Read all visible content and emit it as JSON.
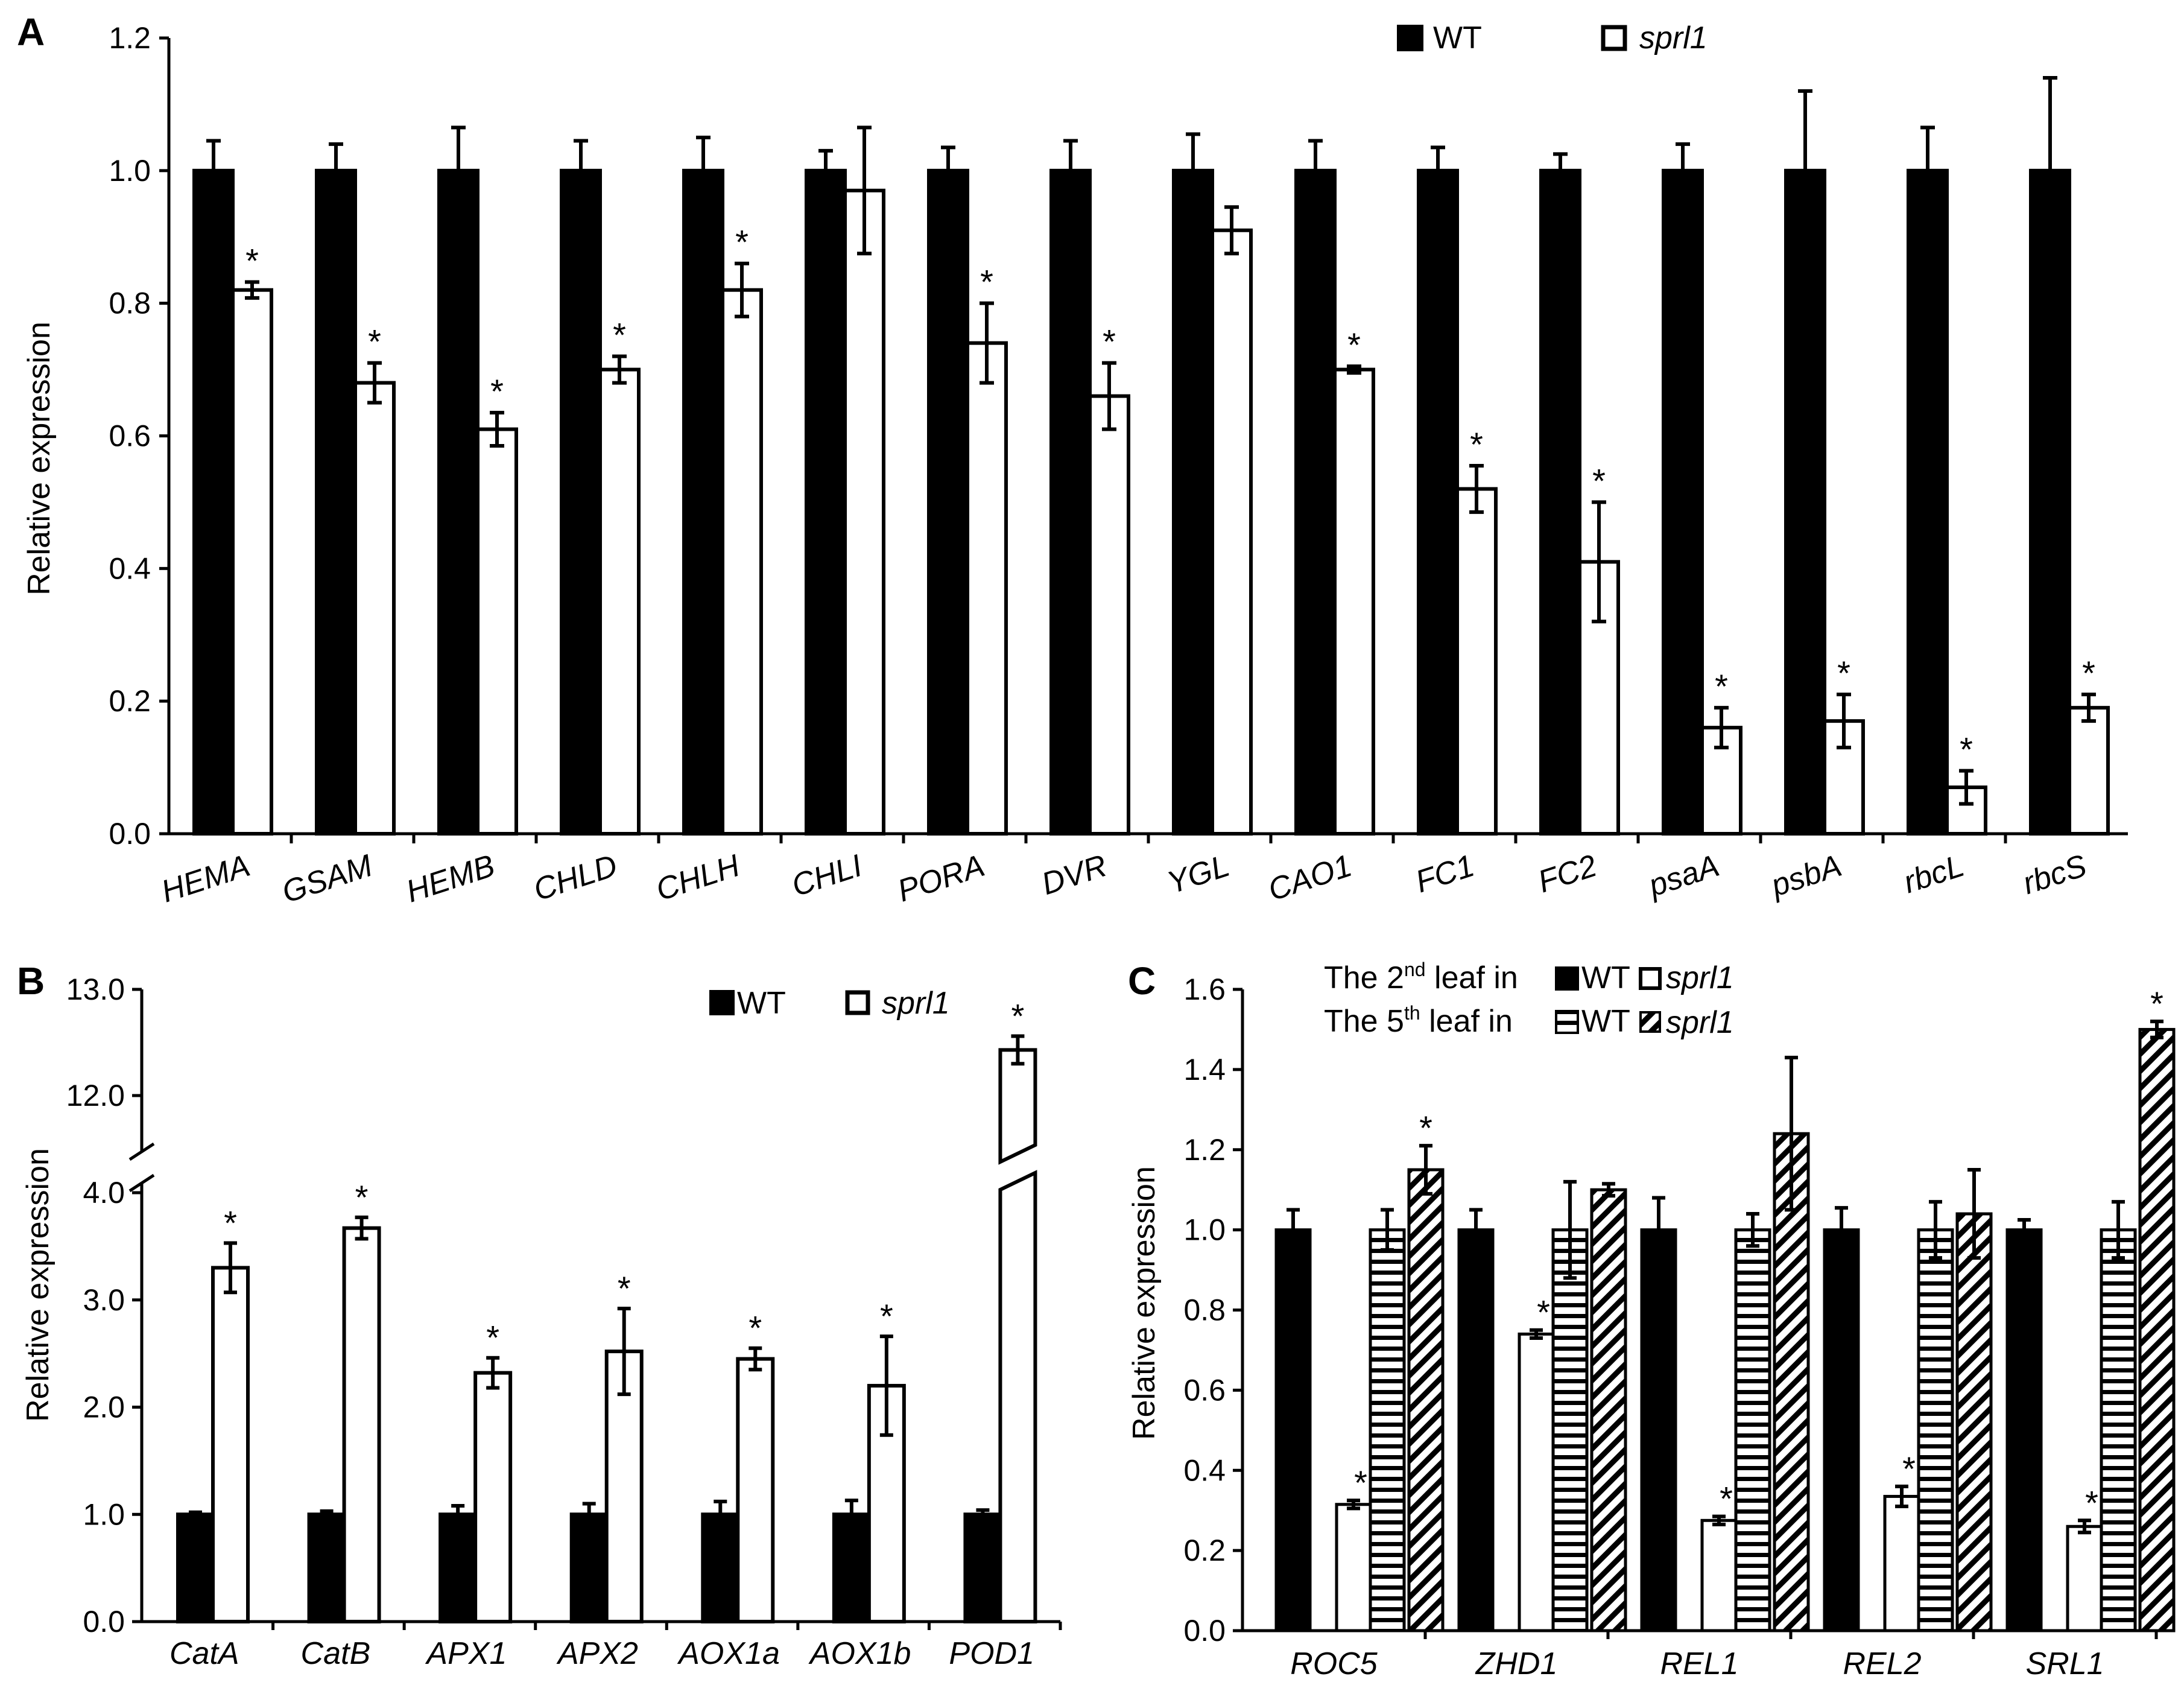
{
  "colors": {
    "wt": "#000000",
    "mutant": "#ffffff",
    "stroke": "#000000"
  },
  "chart_data": [
    {
      "panel": "A",
      "type": "bar",
      "ylabel": "Relative expression",
      "ylim": [
        0,
        1.2
      ],
      "yticks": [
        "0.0",
        "0.2",
        "0.4",
        "0.6",
        "0.8",
        "1.0",
        "1.2"
      ],
      "categories": [
        "HEMA",
        "GSAM",
        "HEMB",
        "CHLD",
        "CHLH",
        "CHLI",
        "PORA",
        "DVR",
        "YGL",
        "CAO1",
        "FC1",
        "FC2",
        "psaA",
        "psbA",
        "rbcL",
        "rbcS"
      ],
      "legend": [
        "WT",
        "sprl1"
      ],
      "series": [
        {
          "name": "WT",
          "fill": "solid",
          "values": [
            1.0,
            1.0,
            1.0,
            1.0,
            1.0,
            1.0,
            1.0,
            1.0,
            1.0,
            1.0,
            1.0,
            1.0,
            1.0,
            1.0,
            1.0,
            1.0
          ],
          "errors": [
            0.045,
            0.04,
            0.065,
            0.045,
            0.05,
            0.03,
            0.035,
            0.045,
            0.055,
            0.045,
            0.035,
            0.025,
            0.04,
            0.12,
            0.065,
            0.14
          ]
        },
        {
          "name": "sprl1",
          "fill": "open",
          "values": [
            0.82,
            0.68,
            0.61,
            0.7,
            0.82,
            0.97,
            0.74,
            0.66,
            0.91,
            0.7,
            0.52,
            0.41,
            0.16,
            0.17,
            0.07,
            0.19
          ],
          "errors": [
            0.012,
            0.03,
            0.025,
            0.02,
            0.04,
            0.095,
            0.06,
            0.05,
            0.035,
            0.005,
            0.035,
            0.09,
            0.03,
            0.04,
            0.025,
            0.02
          ]
        }
      ],
      "significance": [
        [
          "",
          "*"
        ],
        [
          "",
          "*"
        ],
        [
          "",
          "*"
        ],
        [
          "",
          "*"
        ],
        [
          "",
          "*"
        ],
        [
          "",
          ""
        ],
        [
          "",
          "*"
        ],
        [
          "",
          "*"
        ],
        [
          "",
          ""
        ],
        [
          "",
          "*"
        ],
        [
          "",
          "*"
        ],
        [
          "",
          "*"
        ],
        [
          "",
          "*"
        ],
        [
          "",
          "*"
        ],
        [
          "",
          "*"
        ],
        [
          "",
          "*"
        ]
      ]
    },
    {
      "panel": "B",
      "type": "bar",
      "ylabel": "Relative expression",
      "axis_break": {
        "lower_max": 4.0,
        "upper_min": 11.4,
        "upper_max": 13.0
      },
      "lower_ticks": [
        "0.0",
        "1.0",
        "2.0",
        "3.0",
        "4.0"
      ],
      "upper_ticks": [
        "12.0",
        "13.0"
      ],
      "categories": [
        "CatA",
        "CatB",
        "APX1",
        "APX2",
        "AOX1a",
        "AOX1b",
        "POD1"
      ],
      "legend": [
        "WT",
        "sprl1"
      ],
      "series": [
        {
          "name": "WT",
          "fill": "solid",
          "values": [
            1.0,
            1.0,
            1.0,
            1.0,
            1.0,
            1.0,
            1.0
          ],
          "errors": [
            0.02,
            0.03,
            0.08,
            0.1,
            0.12,
            0.13,
            0.04
          ]
        },
        {
          "name": "sprl1",
          "fill": "open",
          "values": [
            3.3,
            3.67,
            2.32,
            2.52,
            2.45,
            2.2,
            12.43
          ],
          "errors": [
            0.23,
            0.1,
            0.14,
            0.4,
            0.1,
            0.46,
            0.13
          ]
        }
      ],
      "significance": [
        [
          "",
          "*"
        ],
        [
          "",
          "*"
        ],
        [
          "",
          "*"
        ],
        [
          "",
          "*"
        ],
        [
          "",
          "*"
        ],
        [
          "",
          "*"
        ],
        [
          "",
          "*"
        ]
      ]
    },
    {
      "panel": "C",
      "type": "bar",
      "ylabel": "Relative expression",
      "ylim": [
        0,
        1.6
      ],
      "yticks": [
        "0.0",
        "0.2",
        "0.4",
        "0.6",
        "0.8",
        "1.0",
        "1.2",
        "1.4",
        "1.6"
      ],
      "categories": [
        "ROC5",
        "ZHD1",
        "REL1",
        "REL2",
        "SRL1"
      ],
      "legend_rows": [
        {
          "label_pre": "The 2",
          "label_sup": "nd",
          "label_post": " leaf in",
          "entries": [
            "WT",
            "sprl1"
          ]
        },
        {
          "label_pre": "The 5",
          "label_sup": "th",
          "label_post": " leaf in",
          "entries": [
            "WT",
            "sprl1"
          ]
        }
      ],
      "series": [
        {
          "name": "2nd leaf WT",
          "fill": "solid",
          "values": [
            1.0,
            1.0,
            1.0,
            1.0,
            1.0
          ],
          "errors": [
            0.05,
            0.05,
            0.08,
            0.055,
            0.025
          ]
        },
        {
          "name": "2nd leaf sprl1",
          "fill": "open",
          "values": [
            0.315,
            0.74,
            0.275,
            0.335,
            0.26
          ],
          "errors": [
            0.01,
            0.01,
            0.01,
            0.025,
            0.015
          ]
        },
        {
          "name": "5th leaf WT",
          "fill": "horizontal-stripes",
          "values": [
            1.0,
            1.0,
            1.0,
            1.0,
            1.0
          ],
          "errors": [
            0.05,
            0.12,
            0.04,
            0.07,
            0.07
          ]
        },
        {
          "name": "5th leaf sprl1",
          "fill": "diagonal-stripes",
          "values": [
            1.15,
            1.1,
            1.24,
            1.04,
            1.5
          ],
          "errors": [
            0.06,
            0.015,
            0.19,
            0.11,
            0.02
          ]
        }
      ],
      "significance": [
        [
          "",
          "*",
          "",
          "*"
        ],
        [
          "",
          "*",
          "",
          ""
        ],
        [
          "",
          "*",
          "",
          ""
        ],
        [
          "",
          "*",
          "",
          ""
        ],
        [
          "",
          "*",
          "",
          "*"
        ]
      ]
    }
  ]
}
